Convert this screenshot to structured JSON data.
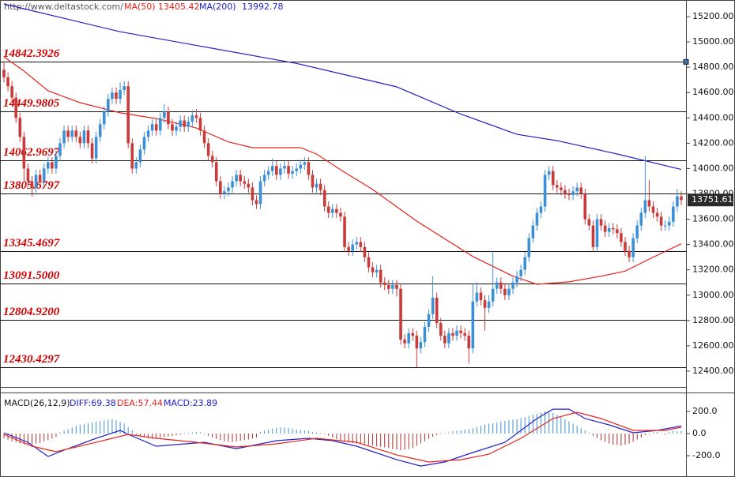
{
  "chart_data": [
    {
      "type": "candlestick",
      "source": "http://www.deltastock.com/",
      "open": [
        14780,
        14720,
        14650,
        14560,
        14400,
        14250,
        14000,
        13900,
        13850,
        13950,
        13900,
        14000,
        14050,
        14000,
        14100,
        14200,
        14300,
        14250,
        14300,
        14250,
        14200,
        14300,
        14200,
        14080,
        14250,
        14350,
        14450,
        14550,
        14600,
        14550,
        14620,
        14650,
        14200,
        14000,
        14050,
        14150,
        14250,
        14300,
        14350,
        14300,
        14400,
        14450,
        14350,
        14300,
        14330,
        14380,
        14330,
        14370,
        14420,
        14400,
        14300,
        14200,
        14100,
        14050,
        13900,
        13800,
        13820,
        13850,
        13900,
        13950,
        13900,
        13880,
        13850,
        13750,
        13720,
        13900,
        13950,
        13980,
        14020,
        13950,
        14000,
        14020,
        13960,
        13980,
        14000,
        14030,
        14050,
        13950,
        13850,
        13880,
        13830,
        13700,
        13650,
        13680,
        13650,
        13620,
        13380,
        13350,
        13400,
        13420,
        13380,
        13300,
        13220,
        13180,
        13200,
        13100,
        13080,
        13050,
        13080,
        13050,
        12650,
        12620,
        12700,
        12680,
        12580,
        12630,
        12750,
        12850,
        12980,
        12780,
        12680,
        12620,
        12700,
        12680,
        12720,
        12700,
        12680,
        12580,
        12950,
        13020,
        12960,
        12900,
        12950,
        13050,
        13100,
        13050,
        13000,
        13050,
        13100,
        13150,
        13200,
        13300,
        13450,
        13550,
        13650,
        13700,
        13950,
        13980,
        13870,
        13850,
        13830,
        13800,
        13790,
        13820,
        13850,
        13800,
        13600,
        13550,
        13380,
        13600,
        13550,
        13500,
        13530,
        13520,
        13490,
        13420,
        13350,
        13300,
        13450,
        13550,
        13650,
        13750,
        13700,
        13650,
        13620,
        13550,
        13550,
        13580,
        13700,
        13780
      ],
      "high": [
        14840,
        14760,
        14690,
        14600,
        14440,
        14290,
        14040,
        13940,
        13990,
        13990,
        14040,
        14090,
        14090,
        14140,
        14240,
        14340,
        14340,
        14340,
        14340,
        14290,
        14340,
        14340,
        14240,
        14290,
        14390,
        14490,
        14590,
        14640,
        14640,
        14680,
        14690,
        14690,
        14240,
        14090,
        14190,
        14290,
        14340,
        14390,
        14390,
        14440,
        14510,
        14490,
        14390,
        14370,
        14420,
        14420,
        14410,
        14460,
        14470,
        14440,
        14340,
        14240,
        14140,
        14090,
        13940,
        13860,
        13890,
        13940,
        13990,
        13990,
        13940,
        13920,
        13890,
        13790,
        13940,
        13990,
        14020,
        14080,
        14060,
        14040,
        14060,
        14060,
        14020,
        14040,
        14070,
        14090,
        14090,
        13990,
        13920,
        13920,
        13870,
        13740,
        13720,
        13720,
        13690,
        13660,
        13420,
        13440,
        13460,
        13460,
        13420,
        13340,
        13260,
        13240,
        13240,
        13140,
        13120,
        13120,
        13120,
        13090,
        12690,
        12740,
        12740,
        12720,
        12670,
        12790,
        12890,
        13150,
        13020,
        12820,
        12720,
        12740,
        12740,
        12760,
        12760,
        12740,
        12720,
        13090,
        13100,
        13060,
        13000,
        13000,
        13350,
        13140,
        13140,
        13090,
        13090,
        13140,
        13190,
        13240,
        13340,
        13490,
        13590,
        13690,
        13740,
        13990,
        14020,
        14020,
        13910,
        13890,
        13870,
        13840,
        13860,
        13890,
        13890,
        13840,
        13640,
        13590,
        13640,
        13640,
        13590,
        13570,
        13570,
        13560,
        13530,
        13460,
        13390,
        13490,
        13590,
        13690,
        14100,
        13910,
        13740,
        13690,
        13660,
        13590,
        13620,
        13740,
        13840,
        13820
      ],
      "low": [
        14680,
        14610,
        14520,
        14360,
        14210,
        13900,
        13860,
        13780,
        13810,
        13860,
        13860,
        13960,
        13960,
        13960,
        14060,
        14160,
        14210,
        14210,
        14210,
        14160,
        14160,
        14160,
        14040,
        14040,
        14210,
        14310,
        14410,
        14510,
        14510,
        14510,
        14580,
        14160,
        13960,
        13960,
        14010,
        14110,
        14210,
        14260,
        14260,
        14260,
        14360,
        14310,
        14260,
        14260,
        14290,
        14290,
        14290,
        14330,
        14360,
        14260,
        14160,
        14060,
        14010,
        13860,
        13760,
        13760,
        13780,
        13810,
        13860,
        13860,
        13840,
        13810,
        13710,
        13680,
        13680,
        13860,
        13910,
        13940,
        13910,
        13910,
        13960,
        13920,
        13920,
        13940,
        13960,
        13990,
        13910,
        13810,
        13810,
        13790,
        13660,
        13610,
        13610,
        13610,
        13580,
        13340,
        13310,
        13310,
        13360,
        13340,
        13260,
        13180,
        13140,
        13140,
        13060,
        13040,
        13010,
        13010,
        12990,
        12610,
        12580,
        12580,
        12640,
        12430,
        12540,
        12590,
        12710,
        12810,
        12740,
        12640,
        12580,
        12580,
        12640,
        12640,
        12660,
        12640,
        12460,
        12540,
        12910,
        12920,
        12720,
        12860,
        12910,
        13010,
        13010,
        12960,
        12960,
        13010,
        13060,
        13110,
        13160,
        13260,
        13410,
        13510,
        13610,
        13660,
        13910,
        13830,
        13810,
        13790,
        13760,
        13750,
        13750,
        13780,
        13760,
        13560,
        13510,
        13340,
        13340,
        13510,
        13460,
        13460,
        13480,
        13450,
        13380,
        13310,
        13260,
        13260,
        13410,
        13510,
        13610,
        13660,
        13610,
        13580,
        13510,
        13510,
        13510,
        13540,
        13660,
        13710
      ],
      "close": [
        14720,
        14650,
        14560,
        14400,
        14250,
        14000,
        13900,
        13850,
        13950,
        13900,
        14000,
        14050,
        14000,
        14100,
        14200,
        14300,
        14250,
        14300,
        14250,
        14200,
        14300,
        14200,
        14080,
        14250,
        14350,
        14450,
        14550,
        14600,
        14550,
        14620,
        14650,
        14200,
        14000,
        14050,
        14150,
        14250,
        14300,
        14350,
        14300,
        14400,
        14450,
        14350,
        14300,
        14330,
        14380,
        14330,
        14370,
        14420,
        14400,
        14300,
        14200,
        14100,
        14050,
        13900,
        13800,
        13820,
        13850,
        13900,
        13950,
        13900,
        13880,
        13850,
        13750,
        13720,
        13900,
        13950,
        13980,
        14020,
        13950,
        14000,
        14020,
        13960,
        13980,
        14000,
        14030,
        14050,
        13950,
        13850,
        13880,
        13830,
        13700,
        13650,
        13680,
        13650,
        13620,
        13380,
        13350,
        13400,
        13420,
        13380,
        13300,
        13220,
        13180,
        13200,
        13100,
        13080,
        13050,
        13080,
        13050,
        12650,
        12620,
        12700,
        12680,
        12580,
        12630,
        12750,
        12850,
        12980,
        12780,
        12680,
        12620,
        12700,
        12680,
        12720,
        12700,
        12680,
        12580,
        12950,
        13020,
        12960,
        12900,
        12950,
        13050,
        13100,
        13050,
        13000,
        13050,
        13100,
        13150,
        13200,
        13300,
        13450,
        13550,
        13650,
        13700,
        13950,
        13980,
        13870,
        13850,
        13830,
        13800,
        13790,
        13820,
        13850,
        13800,
        13600,
        13550,
        13380,
        13600,
        13550,
        13500,
        13530,
        13520,
        13490,
        13420,
        13350,
        13300,
        13450,
        13550,
        13650,
        13750,
        13700,
        13650,
        13620,
        13550,
        13550,
        13580,
        13700,
        13780,
        13751.61
      ],
      "up_color": "#3d8fd6",
      "down_color": "#c93a3a",
      "series": [
        {
          "name": "MA(50)",
          "color": "#e8231c",
          "x": [
            0,
            5,
            11,
            19,
            29,
            38,
            48,
            56,
            62,
            74,
            78,
            84,
            92,
            103,
            117,
            127,
            133,
            141,
            149,
            155,
            161,
            169
          ],
          "values": [
            14882,
            14770,
            14614,
            14520,
            14440,
            14395,
            14320,
            14210,
            14165,
            14165,
            14115,
            13990,
            13835,
            13585,
            13305,
            13150,
            13086,
            13105,
            13150,
            13190,
            13285,
            13405.42
          ]
        },
        {
          "name": "MA(200)",
          "color": "#2020cc",
          "x": [
            0,
            29,
            73,
            98,
            114,
            128,
            138,
            153,
            169
          ],
          "values": [
            15300,
            15080,
            14830,
            14645,
            14430,
            14270,
            14220,
            14115,
            13992.78
          ]
        }
      ],
      "levels": [
        {
          "value": 14842.3926,
          "label": "14842.3926"
        },
        {
          "value": 14449.9805,
          "label": "14449.9805"
        },
        {
          "value": 14062.9697,
          "label": "14062.9697"
        },
        {
          "value": 13805.6797,
          "label": "13805.6797"
        },
        {
          "value": 13345.4697,
          "label": "13345.4697"
        },
        {
          "value": 13091.5,
          "label": "13091.5000"
        },
        {
          "value": 12804.92,
          "label": "12804.9200"
        },
        {
          "value": 12430.4297,
          "label": "12430.4297"
        }
      ],
      "level_color": "#d10000",
      "last_price": {
        "value": 13751.61,
        "label": "13751.61"
      },
      "ylim": [
        12275,
        15331
      ],
      "yticks": [
        {
          "value": 12400,
          "label": "12400.00"
        },
        {
          "value": 12600,
          "label": "12600.00"
        },
        {
          "value": 12800,
          "label": "12800.00"
        },
        {
          "value": 13000,
          "label": "13000.00"
        },
        {
          "value": 13200,
          "label": "13200.00"
        },
        {
          "value": 13400,
          "label": "13400.00"
        },
        {
          "value": 13600,
          "label": "13600.00"
        },
        {
          "value": 13800,
          "label": "13800.00"
        },
        {
          "value": 14000,
          "label": "14000.00"
        },
        {
          "value": 14200,
          "label": "14200.00"
        },
        {
          "value": 14400,
          "label": "14400.00"
        },
        {
          "value": 14600,
          "label": "14600.00"
        },
        {
          "value": 14800,
          "label": "14800.00"
        },
        {
          "value": 15000,
          "label": "15000.00"
        },
        {
          "value": 15200,
          "label": "15200.00"
        }
      ]
    },
    {
      "type": "macd",
      "title": "MACD(26,12,9)",
      "series": [
        {
          "label": "DIFF:69.38",
          "color": "#2020cc",
          "x": [
            0,
            6,
            11,
            15,
            23,
            29,
            31,
            38,
            50,
            58,
            68,
            76,
            82,
            88,
            98,
            104,
            110,
            117,
            125,
            133,
            137,
            141,
            145,
            151,
            157,
            163,
            169
          ],
          "values": [
            7,
            -79,
            -207,
            -150,
            -43,
            29,
            -7,
            -114,
            -79,
            -136,
            -64,
            -43,
            -64,
            -114,
            -236,
            -293,
            -257,
            -171,
            -79,
            136,
            221,
            221,
            136,
            79,
            7,
            29,
            69.38
          ]
        },
        {
          "label": "DEA:57.44",
          "color": "#e8231c",
          "x": [
            0,
            7,
            13,
            23,
            31,
            38,
            48,
            58,
            68,
            78,
            88,
            98,
            106,
            114,
            121,
            129,
            137,
            143,
            149,
            157,
            165,
            169
          ],
          "values": [
            -7,
            -114,
            -164,
            -79,
            -7,
            -43,
            -79,
            -121,
            -93,
            -43,
            -79,
            -193,
            -257,
            -236,
            -186,
            -43,
            136,
            193,
            136,
            29,
            29,
            57.44
          ]
        },
        {
          "label": "MACD:23.89",
          "color": "#2020cc",
          "up_color": "#3d8fd6",
          "down_color": "#b03030",
          "values": [
            -40,
            -55,
            -70,
            -80,
            -90,
            -95,
            -100,
            -95,
            -90,
            -85,
            -70,
            -60,
            -45,
            -30,
            10,
            25,
            40,
            55,
            70,
            80,
            85,
            95,
            100,
            110,
            115,
            120,
            125,
            130,
            120,
            105,
            90,
            60,
            30,
            -10,
            -20,
            -30,
            -40,
            -45,
            -40,
            -35,
            -30,
            -25,
            -20,
            -15,
            -10,
            -5,
            5,
            10,
            15,
            10,
            -5,
            -20,
            -35,
            -50,
            -60,
            -70,
            -75,
            -75,
            -70,
            -65,
            -60,
            -55,
            -45,
            -35,
            15,
            25,
            35,
            45,
            50,
            55,
            55,
            50,
            45,
            40,
            35,
            30,
            25,
            15,
            10,
            5,
            -5,
            -20,
            -35,
            -50,
            -60,
            -70,
            -80,
            -85,
            -90,
            -95,
            -100,
            -105,
            -110,
            -115,
            -120,
            -125,
            -130,
            -140,
            -145,
            -150,
            -145,
            -140,
            -130,
            -110,
            -90,
            -70,
            -50,
            -30,
            -15,
            -5,
            5,
            10,
            20,
            25,
            30,
            35,
            40,
            50,
            60,
            70,
            80,
            90,
            95,
            100,
            110,
            115,
            120,
            125,
            130,
            140,
            150,
            160,
            170,
            180,
            190,
            200,
            195,
            185,
            170,
            150,
            130,
            110,
            90,
            70,
            50,
            30,
            10,
            -20,
            -40,
            -60,
            -75,
            -90,
            -100,
            -105,
            -110,
            -100,
            -90,
            -75,
            -55,
            -35,
            -15,
            -5,
            10,
            15,
            5,
            -10,
            15,
            25,
            20,
            23.89
          ]
        }
      ],
      "ylim": [
        -364,
        350
      ],
      "yticks": [
        {
          "value": 200,
          "label": "200.0"
        },
        {
          "value": 0,
          "label": "0.0"
        },
        {
          "value": -200,
          "label": "-200.0"
        }
      ]
    }
  ]
}
